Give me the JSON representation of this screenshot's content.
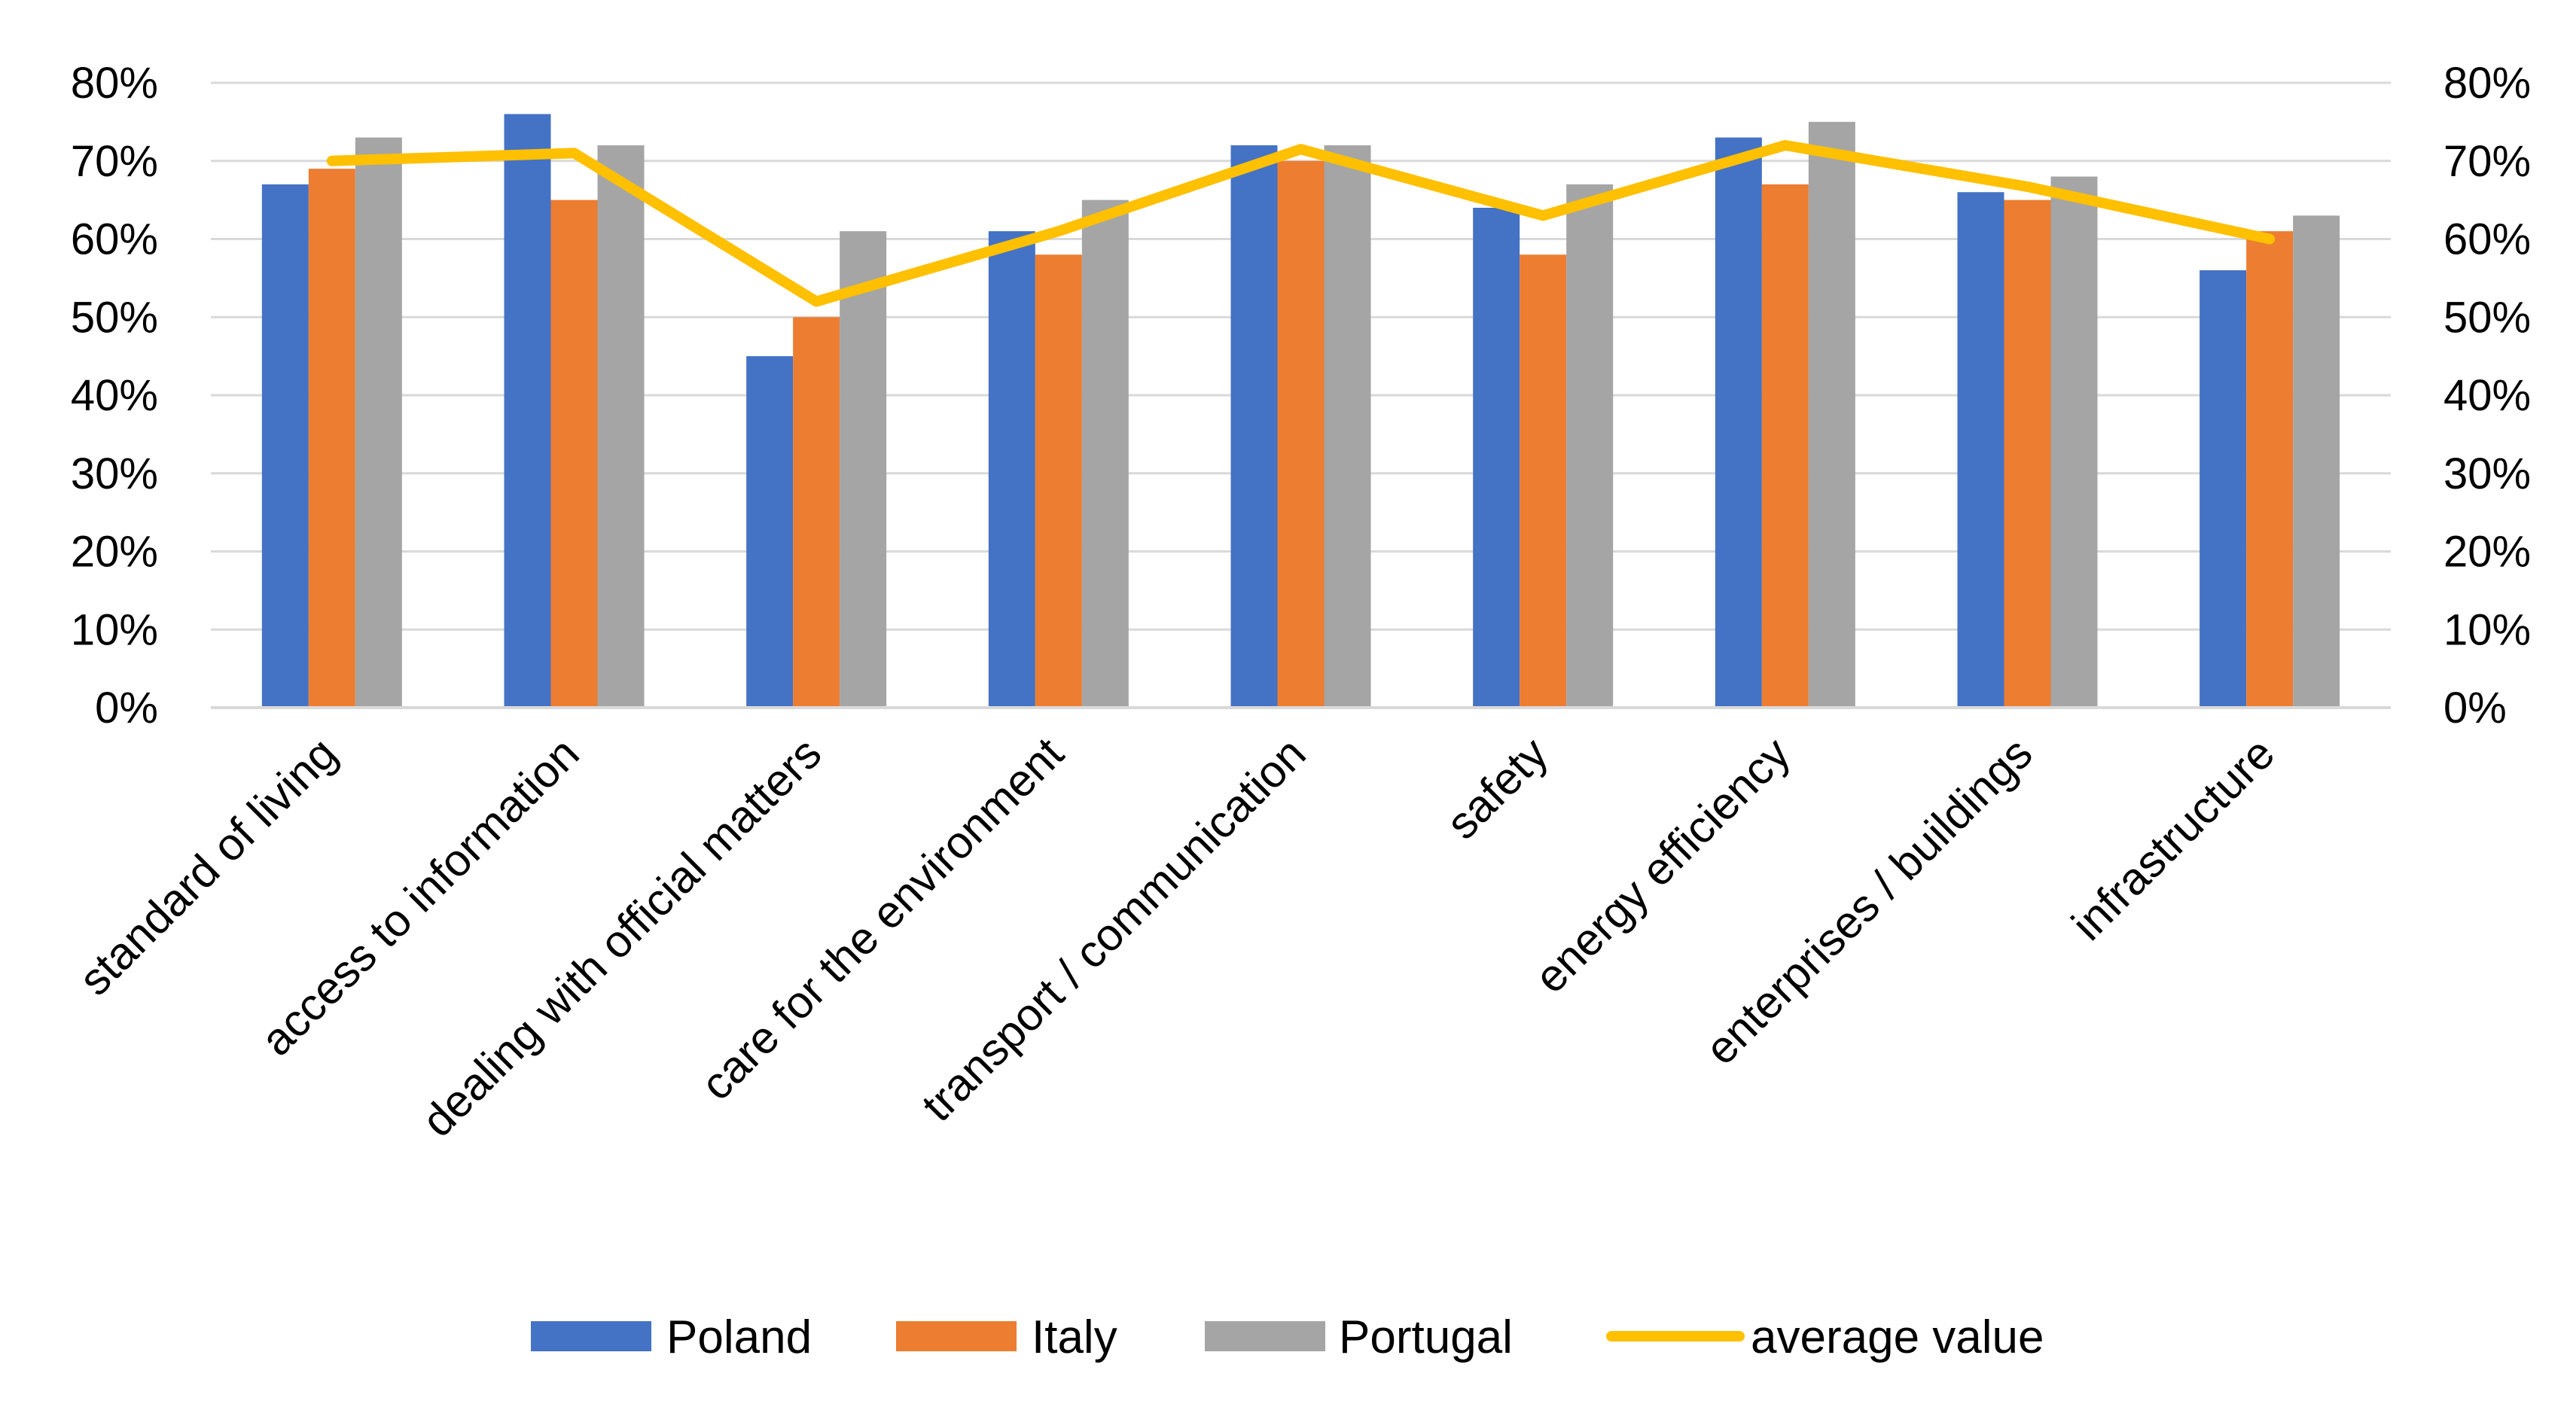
{
  "chart_data": {
    "type": "bar",
    "title": "",
    "xlabel": "",
    "ylabel": "",
    "ylim": [
      0,
      0.8
    ],
    "yticks": [
      "0%",
      "10%",
      "20%",
      "30%",
      "40%",
      "50%",
      "60%",
      "70%",
      "80%"
    ],
    "y2ticks": [
      "0%",
      "10%",
      "20%",
      "30%",
      "40%",
      "50%",
      "60%",
      "70%",
      "80%"
    ],
    "grid": true,
    "legend_position": "bottom",
    "categories": [
      "standard of living",
      "access to information",
      "dealing with official matters",
      "care for the environment",
      "transport / communication",
      "safety",
      "energy efficiency",
      "enterprises / buildings",
      "infrastructure"
    ],
    "series": [
      {
        "name": "Poland",
        "type": "bar",
        "color": "#4472C4",
        "values": [
          0.67,
          0.76,
          0.45,
          0.61,
          0.72,
          0.64,
          0.73,
          0.66,
          0.56
        ]
      },
      {
        "name": "Italy",
        "type": "bar",
        "color": "#ED7D31",
        "values": [
          0.69,
          0.65,
          0.5,
          0.58,
          0.7,
          0.58,
          0.67,
          0.65,
          0.61
        ]
      },
      {
        "name": "Portugal",
        "type": "bar",
        "color": "#A5A5A5",
        "values": [
          0.73,
          0.72,
          0.61,
          0.65,
          0.72,
          0.67,
          0.75,
          0.68,
          0.63
        ]
      },
      {
        "name": "average value",
        "type": "line",
        "color": "#FFC000",
        "values": [
          0.7,
          0.71,
          0.52,
          0.61,
          0.715,
          0.63,
          0.72,
          0.667,
          0.6
        ]
      }
    ]
  }
}
